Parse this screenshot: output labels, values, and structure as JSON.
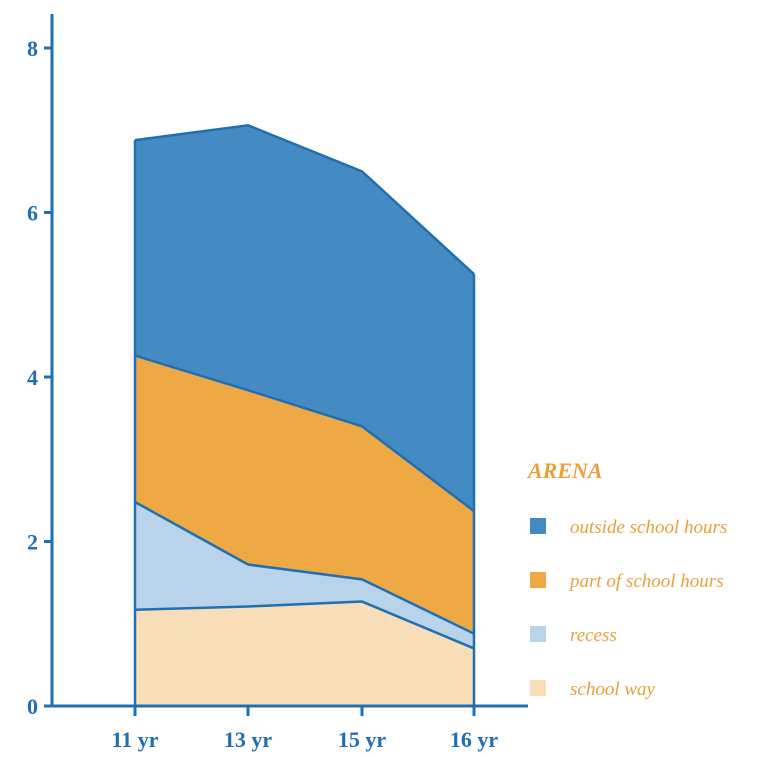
{
  "chart_data": {
    "type": "area",
    "stacked": true,
    "title": "",
    "xlabel": "",
    "ylabel": "",
    "categories": [
      "11 yr",
      "13 yr",
      "15 yr",
      "16 yr"
    ],
    "ylim": [
      0,
      8
    ],
    "yticks": [
      0,
      2,
      4,
      6,
      8
    ],
    "grid": false,
    "legend": {
      "title": "ARENA",
      "placement": "right"
    },
    "series": [
      {
        "name": "school way",
        "values": [
          1.17,
          1.21,
          1.27,
          0.7
        ],
        "color": "#F8DDB9"
      },
      {
        "name": "recess",
        "values": [
          1.31,
          0.51,
          0.27,
          0.18
        ],
        "color": "#B9D3EA"
      },
      {
        "name": "part of school hours",
        "values": [
          1.78,
          2.12,
          1.86,
          1.49
        ],
        "color": "#EEA944"
      },
      {
        "name": "outside school hours",
        "values": [
          2.62,
          3.22,
          3.1,
          2.88
        ],
        "color": "#448BC3"
      }
    ],
    "axis_color": "#1F6FB2",
    "legend_title_color": "#E8A13A",
    "legend_label_color": "#E8A13A"
  }
}
